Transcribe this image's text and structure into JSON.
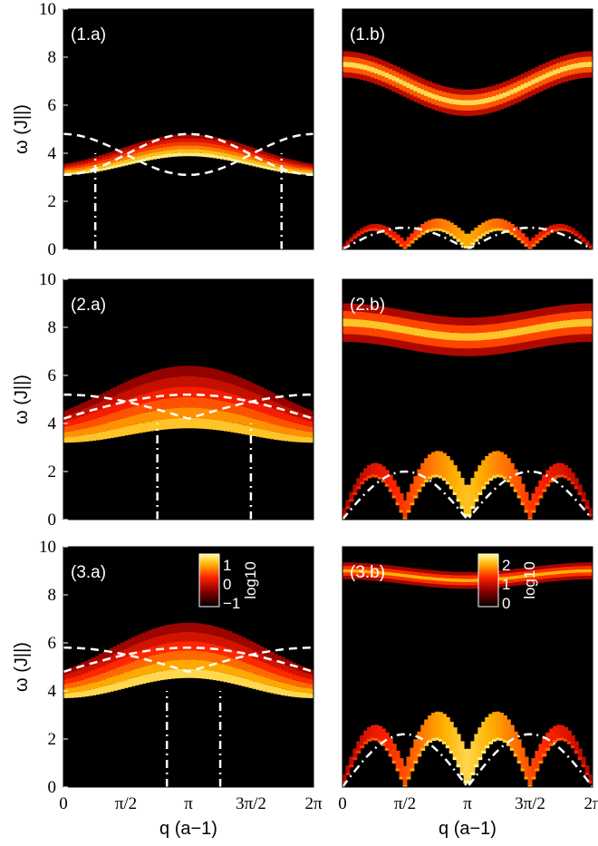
{
  "chart_data": [
    {
      "panel": "(1.a)",
      "type": "heatmap",
      "xlabel": "",
      "ylabel": "ω (J||)",
      "xlim": [
        0,
        6.2832
      ],
      "ylim": [
        0,
        10
      ],
      "yticks": [
        "0",
        "2",
        "4",
        "6",
        "8",
        "10"
      ],
      "xticks": [],
      "continua": [
        {
          "lower": 3.1,
          "amp": 1.3,
          "shape": "cos",
          "width": 0.9,
          "intensity": 0.95
        }
      ],
      "top_continuum": {
        "center": 10.0,
        "width": 0.15,
        "intensity": 0.5
      },
      "dashed_bounds": [
        {
          "base": 3.1,
          "amp": 1.7,
          "shape": "cos"
        },
        {
          "base": 3.1,
          "amp": 1.7,
          "shape": "cos_shift"
        }
      ],
      "dashdot_x": [
        0.8,
        5.48
      ]
    },
    {
      "panel": "(1.b)",
      "type": "heatmap",
      "xlabel": "",
      "ylabel": "",
      "xlim": [
        0,
        6.2832
      ],
      "ylim": [
        0,
        10
      ],
      "yticks": [],
      "xticks": [],
      "band": {
        "center": 6.9,
        "amp": 0.8,
        "width": 1.1,
        "intensity": 0.9
      },
      "low_band": {
        "top": 0.9,
        "intensity": 0.8
      }
    },
    {
      "panel": "(2.a)",
      "type": "heatmap",
      "xlabel": "",
      "ylabel": "ω (J||)",
      "xlim": [
        0,
        6.2832
      ],
      "ylim": [
        0,
        10
      ],
      "yticks": [
        "0",
        "2",
        "4",
        "6",
        "8",
        "10"
      ],
      "xticks": [],
      "continua": [
        {
          "lower": 3.2,
          "amp": 1.0,
          "shape": "cos",
          "width": 2.6,
          "intensity": 0.85
        }
      ],
      "dashed_bounds": [
        {
          "base": 4.2,
          "amp": 1.0,
          "shape": "sin"
        },
        {
          "base": 4.2,
          "amp": 1.0,
          "shape": "sin_shift"
        }
      ],
      "dashdot_x": [
        2.36,
        4.71
      ]
    },
    {
      "panel": "(2.b)",
      "type": "heatmap",
      "xlabel": "",
      "ylabel": "",
      "xlim": [
        0,
        6.2832
      ],
      "ylim": [
        0,
        10
      ],
      "yticks": [],
      "xticks": [],
      "band": {
        "center": 7.9,
        "amp": 0.3,
        "width": 1.6,
        "intensity": 0.85
      },
      "low_band": {
        "top": 2.0,
        "intensity": 0.85
      }
    },
    {
      "panel": "(3.a)",
      "type": "heatmap",
      "xlabel": "q (a−1)",
      "ylabel": "ω (J||)",
      "xlim": [
        0,
        6.2832
      ],
      "ylim": [
        0,
        10
      ],
      "yticks": [
        "0",
        "2",
        "4",
        "6",
        "8",
        "10"
      ],
      "xticks": [
        "0",
        "π/2",
        "π",
        "3π/2",
        "2π"
      ],
      "colorbar": {
        "label": "log10",
        "ticks": [
          "1",
          "0",
          "−1"
        ],
        "range": [
          -1,
          1.5
        ]
      },
      "continua": [
        {
          "lower": 3.7,
          "amp": 1.4,
          "shape": "cos",
          "width": 2.3,
          "intensity": 0.9
        }
      ],
      "dashed_bounds": [
        {
          "base": 4.8,
          "amp": 1.0,
          "shape": "sin"
        },
        {
          "base": 4.8,
          "amp": 1.0,
          "shape": "sin_shift"
        }
      ],
      "dashdot_x": [
        2.6,
        3.94
      ]
    },
    {
      "panel": "(3.b)",
      "type": "heatmap",
      "xlabel": "q (a−1)",
      "ylabel": "",
      "xlim": [
        0,
        6.2832
      ],
      "ylim": [
        0,
        10
      ],
      "yticks": [],
      "xticks": [
        "0",
        "π/2",
        "π",
        "3π/2",
        "2π"
      ],
      "colorbar": {
        "label": "log10",
        "ticks": [
          "2",
          "1",
          "0"
        ],
        "range": [
          0,
          2.5
        ]
      },
      "band": {
        "center": 8.8,
        "amp": 0.2,
        "width": 0.7,
        "intensity": 0.8
      },
      "low_band": {
        "top": 2.2,
        "intensity": 0.9
      }
    }
  ]
}
